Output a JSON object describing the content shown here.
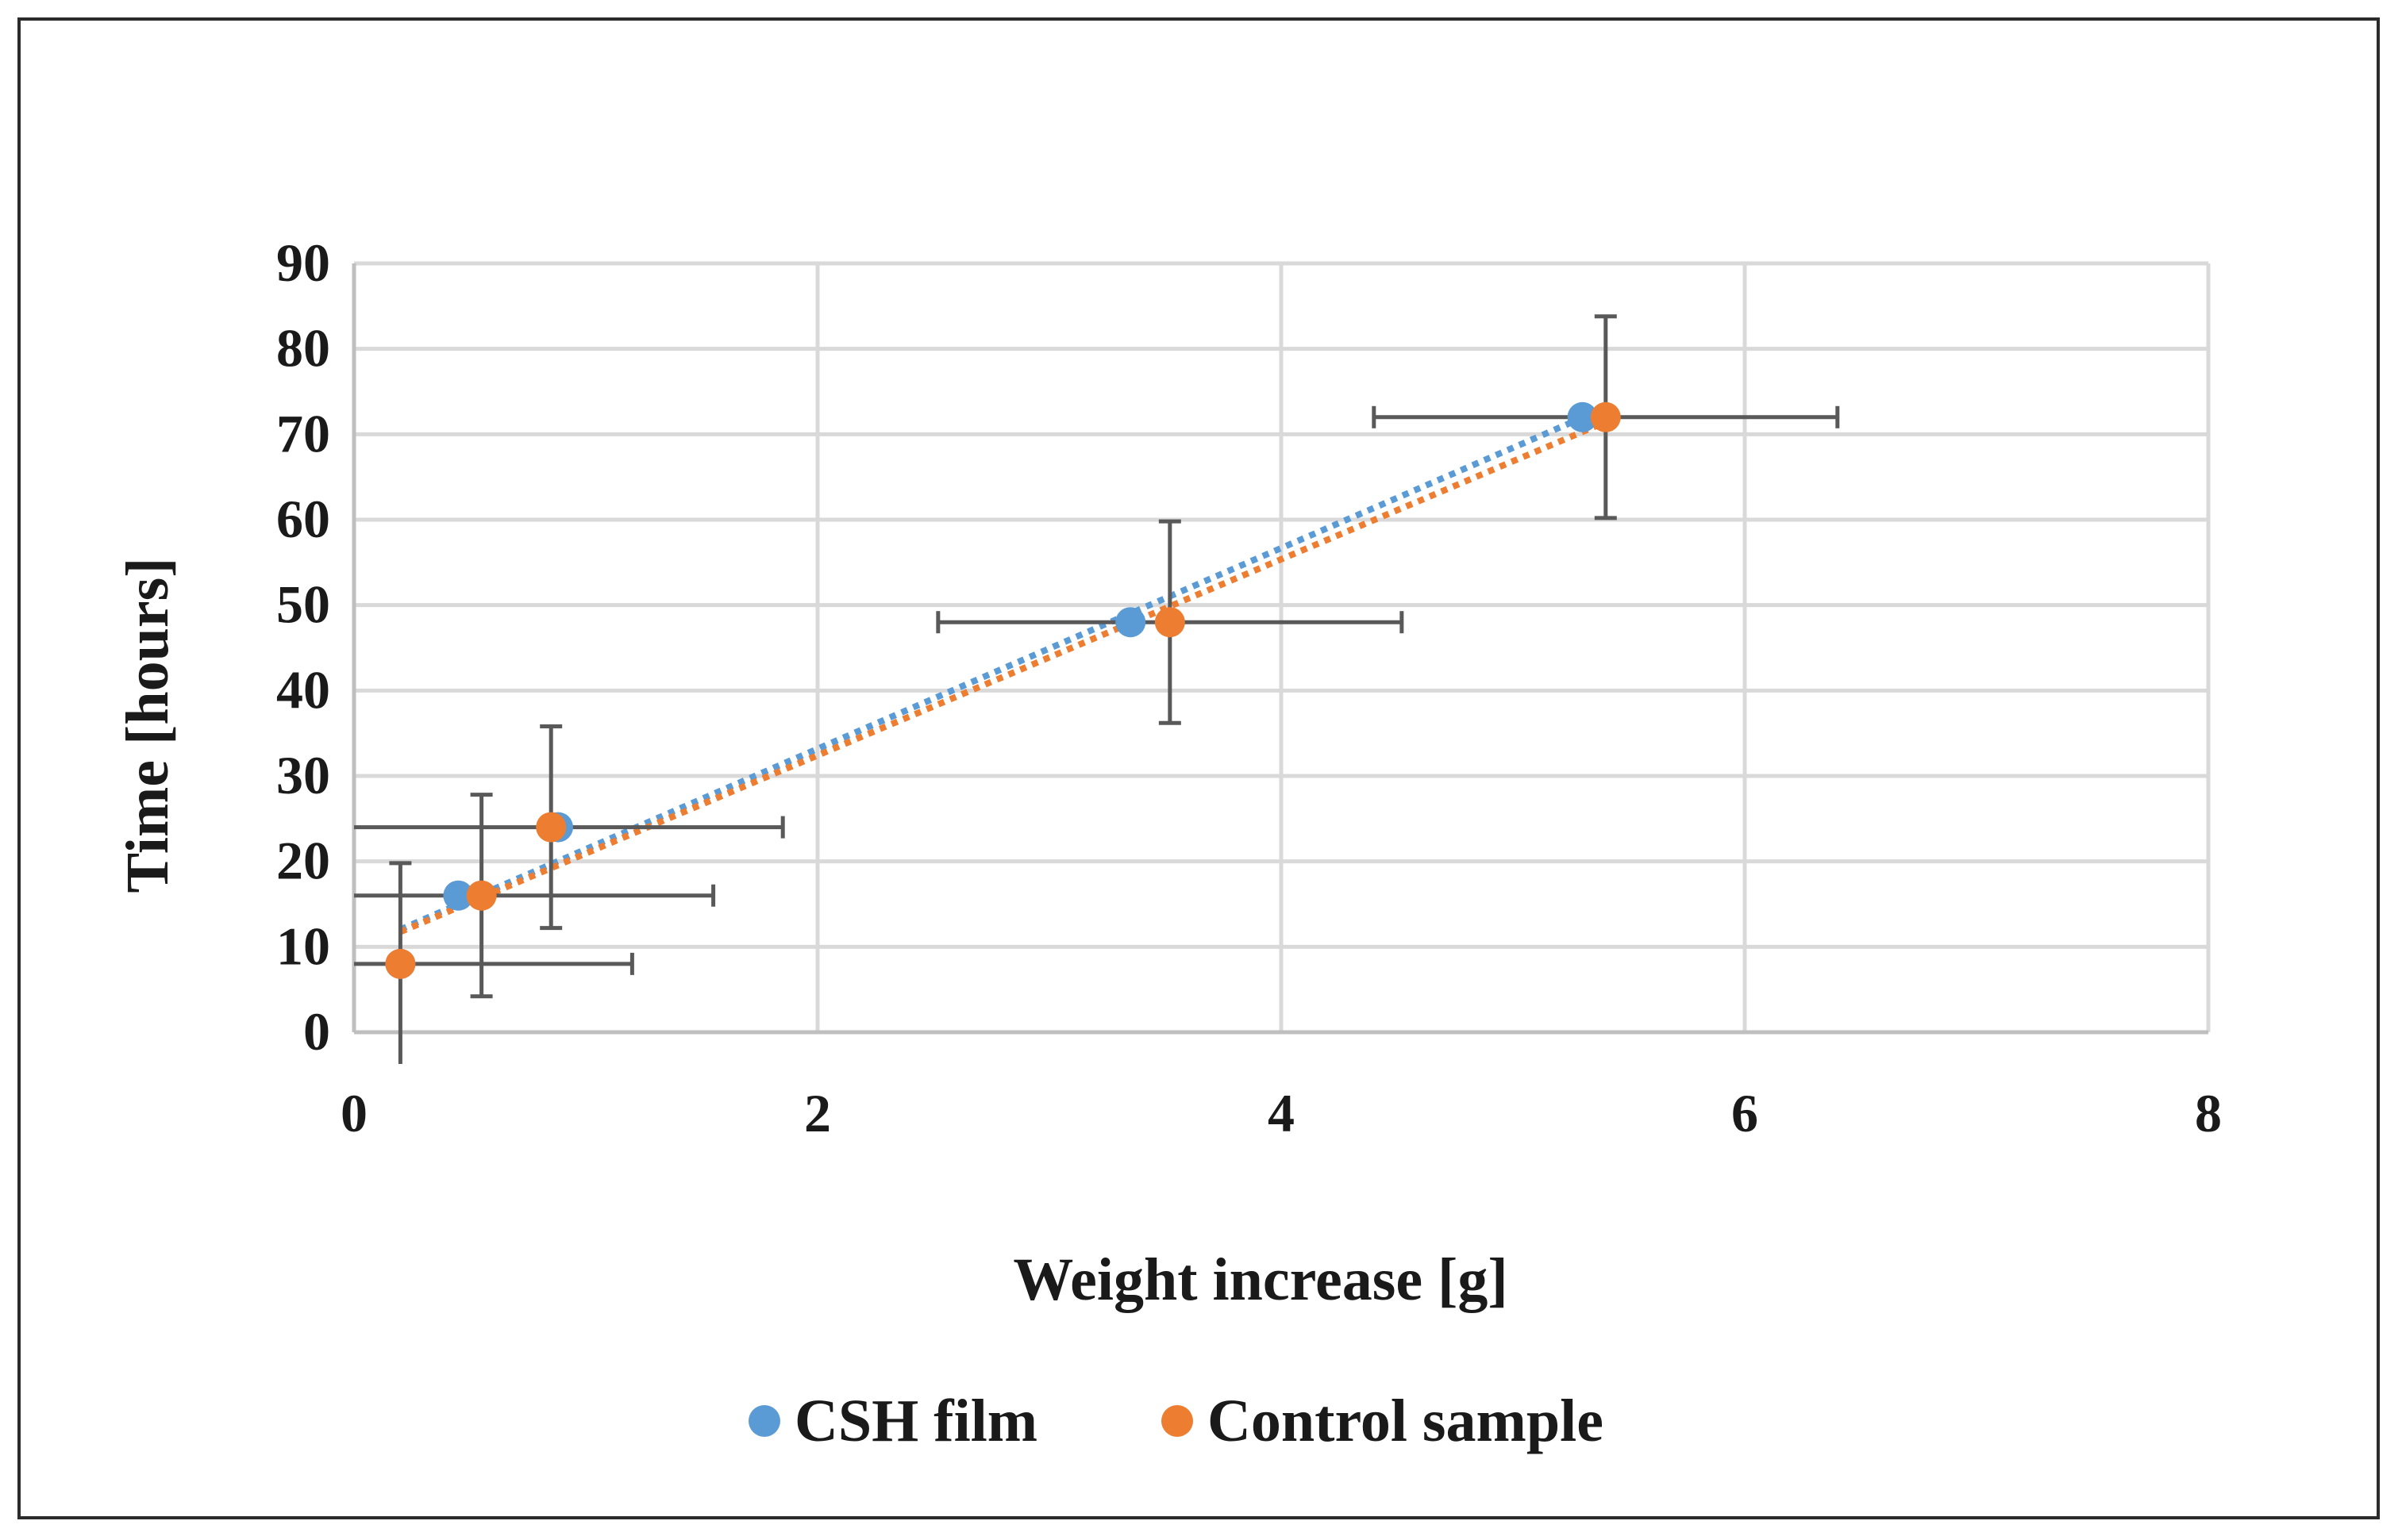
{
  "chart_data": {
    "type": "scatter",
    "title": "",
    "xlabel": "Weight increase [g]",
    "ylabel": "Time [hours]",
    "xlim": [
      0,
      8
    ],
    "ylim": [
      0,
      90
    ],
    "xticks": [
      "0",
      "2",
      "4",
      "6",
      "8"
    ],
    "yticks": [
      "0",
      "10",
      "20",
      "30",
      "40",
      "50",
      "60",
      "70",
      "80",
      "90"
    ],
    "grid": true,
    "legend_position": "bottom",
    "series": [
      {
        "name": "CSH film",
        "color": "#5B9BD5",
        "trendline": "linear, dotted",
        "points": [
          {
            "x": 0.2,
            "y": 8
          },
          {
            "x": 0.45,
            "y": 16
          },
          {
            "x": 0.88,
            "y": 24
          },
          {
            "x": 3.35,
            "y": 48
          },
          {
            "x": 5.3,
            "y": 72
          }
        ]
      },
      {
        "name": "Control sample",
        "color": "#ED7D31",
        "trendline": "linear, dotted",
        "points": [
          {
            "x": 0.2,
            "y": 8,
            "xerr": 1.0,
            "yerr": 11.8
          },
          {
            "x": 0.55,
            "y": 16,
            "xerr": 1.0,
            "yerr": 11.8
          },
          {
            "x": 0.85,
            "y": 24,
            "xerr": 1.0,
            "yerr": 11.8
          },
          {
            "x": 3.52,
            "y": 48,
            "xerr": 1.0,
            "yerr": 11.8
          },
          {
            "x": 5.4,
            "y": 72,
            "xerr": 1.0,
            "yerr": 11.8
          }
        ]
      }
    ],
    "errorbar_color": "#595959"
  }
}
